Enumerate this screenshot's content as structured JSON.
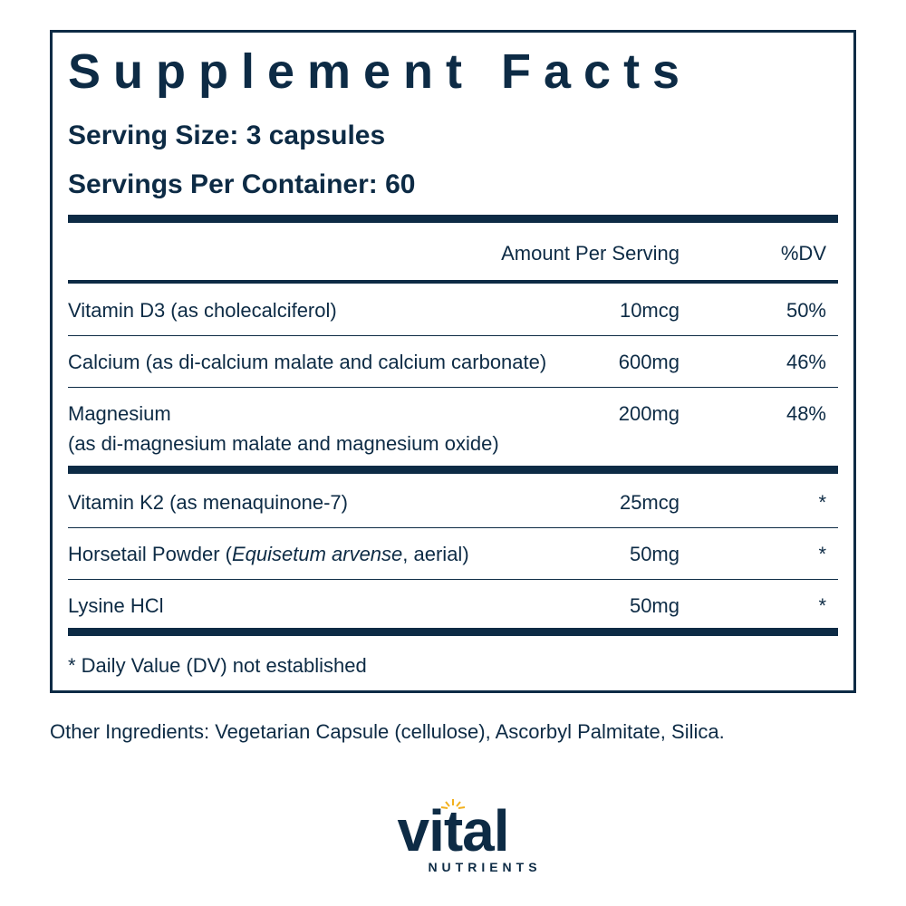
{
  "title": "Supplement Facts",
  "serving_size": "Serving Size: 3 capsules",
  "servings_per_container": "Servings Per Container: 60",
  "table": {
    "header": [
      "Amount Per Serving",
      "%DV"
    ],
    "groups": [
      [
        {
          "name": [
            [
              {
                "text": "Vitamin D3 (as cholecalciferol)"
              }
            ]
          ],
          "amount": "10mcg",
          "dv": "50%"
        },
        {
          "name": [
            [
              {
                "text": "Calcium (as di-calcium malate and calcium carbonate)"
              }
            ]
          ],
          "amount": "600mg",
          "dv": "46%"
        },
        {
          "name": [
            [
              {
                "text": "Magnesium"
              }
            ],
            [
              {
                "text": "(as di-magnesium malate and magnesium oxide)"
              }
            ]
          ],
          "amount": "200mg",
          "dv": "48%"
        }
      ],
      [
        {
          "name": [
            [
              {
                "text": "Vitamin K2 (as menaquinone-7)"
              }
            ]
          ],
          "amount": "25mcg",
          "dv": "*"
        },
        {
          "name": [
            [
              {
                "text": "Horsetail Powder ("
              },
              {
                "text": "Equisetum arvense",
                "italic": true
              },
              {
                "text": ", aerial)"
              }
            ]
          ],
          "amount": "50mg",
          "dv": "*"
        },
        {
          "name": [
            [
              {
                "text": "Lysine HCl"
              }
            ]
          ],
          "amount": "50mg",
          "dv": "*"
        }
      ]
    ]
  },
  "footnote": "* Daily Value (DV) not established",
  "other_ingredients": "Other Ingredients: Vegetarian Capsule (cellulose), Ascorbyl Palmitate, Silica.",
  "brand": {
    "name": "vital",
    "tagline": "NUTRIENTS"
  }
}
